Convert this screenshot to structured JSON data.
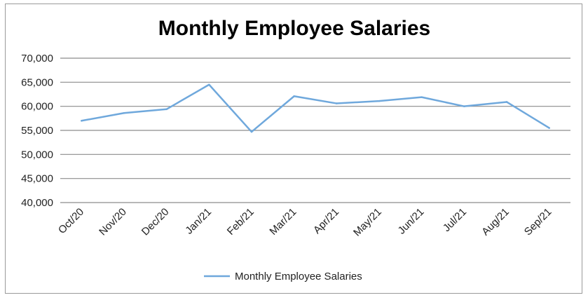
{
  "chart_data": {
    "type": "line",
    "title": "Monthly Employee Salaries",
    "xlabel": "",
    "ylabel": "",
    "categories": [
      "Oct/20",
      "Nov/20",
      "Dec/20",
      "Jan/21",
      "Feb/21",
      "Mar/21",
      "Apr/21",
      "May/21",
      "Jun/21",
      "Jul/21",
      "Aug/21",
      "Sep/21"
    ],
    "series": [
      {
        "name": "Monthly Employee Salaries",
        "values": [
          57000,
          58600,
          59400,
          64500,
          54700,
          62100,
          60600,
          61100,
          61900,
          60000,
          60900,
          55500
        ]
      }
    ],
    "ylim": [
      40000,
      70000
    ],
    "yticks": [
      40000,
      45000,
      50000,
      55000,
      60000,
      65000,
      70000
    ],
    "ytick_labels": [
      "40,000",
      "45,000",
      "50,000",
      "55,000",
      "60,000",
      "65,000",
      "70,000"
    ],
    "grid": true,
    "legend": "bottom",
    "colors": {
      "line": "#6fa8dc",
      "grid": "#8c8c8c"
    }
  }
}
